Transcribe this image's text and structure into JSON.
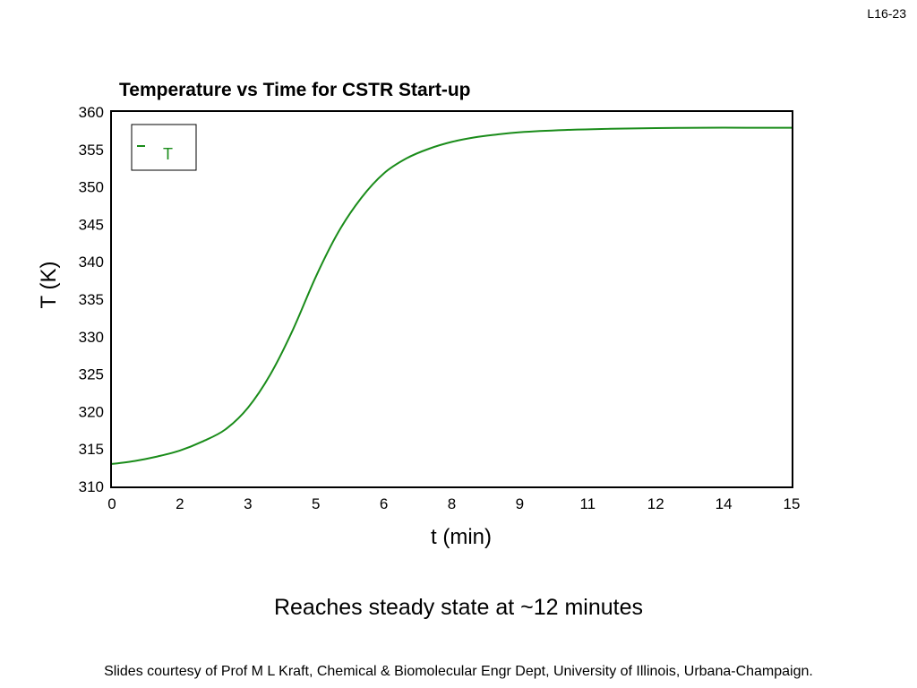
{
  "slide": {
    "number": "L16-23",
    "caption": "Reaches steady state at ~12 minutes",
    "credit": "Slides courtesy of Prof M L Kraft, Chemical & Biomolecular Engr Dept, University of Illinois, Urbana-Champaign."
  },
  "colors": {
    "series": "#1a8c1a",
    "axis": "#000000"
  },
  "chart_data": {
    "type": "line",
    "title": "Temperature vs Time for CSTR Start-up",
    "xlabel": "t (min)",
    "ylabel": "T (K)",
    "xlim": [
      0,
      15
    ],
    "ylim": [
      310,
      360
    ],
    "x_ticks": [
      "0",
      "2",
      "3",
      "5",
      "6",
      "8",
      "9",
      "11",
      "12",
      "14",
      "15"
    ],
    "y_ticks": [
      "310",
      "315",
      "320",
      "325",
      "330",
      "335",
      "340",
      "345",
      "350",
      "355",
      "360"
    ],
    "grid": false,
    "legend_position": "top-left",
    "series": [
      {
        "name": "T",
        "x": [
          0,
          0.5,
          1.0,
          1.5,
          2.0,
          2.5,
          3.0,
          3.5,
          4.0,
          4.5,
          5.0,
          5.5,
          6.0,
          6.5,
          7.0,
          7.5,
          8.0,
          8.5,
          9.0,
          10.0,
          11.0,
          12.0,
          13.0,
          14.0,
          15.0
        ],
        "y": [
          313.0,
          313.4,
          314.0,
          314.8,
          316.0,
          317.6,
          320.5,
          325.0,
          331.0,
          338.0,
          344.0,
          348.5,
          351.8,
          353.8,
          355.1,
          356.0,
          356.6,
          357.0,
          357.3,
          357.6,
          357.75,
          357.85,
          357.9,
          357.9,
          357.9
        ]
      }
    ]
  }
}
